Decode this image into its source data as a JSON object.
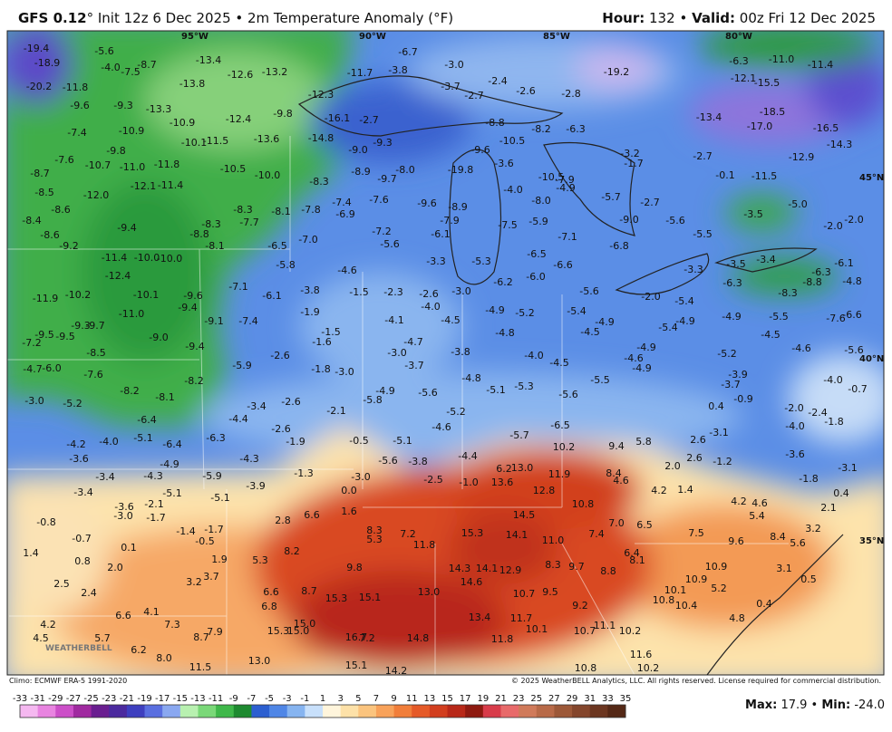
{
  "header": {
    "model": "GFS 0.12",
    "title": "° Init 12z 6 Dec 2025 • 2m Temperature Anomaly (°F)",
    "hour_label": "Hour:",
    "hour": "132",
    "separator": "•",
    "valid_label": "Valid:",
    "valid": "00z Fri 12 Dec 2025"
  },
  "map": {
    "grid_labels": [
      "95°W",
      "90°W",
      "85°W",
      "80°W",
      "45°N",
      "40°N",
      "35°N"
    ],
    "logo": "WEATHERBELL",
    "values": [
      "-19.4",
      "-18.9",
      "-20.2",
      "-5.6",
      "-4.0",
      "-7.5",
      "-8.7",
      "-13.4",
      "-12.6",
      "-13.2",
      "-13.8",
      "-11.8",
      "-9.6",
      "-9.3",
      "-13.3",
      "-10.9",
      "-12.4",
      "-10.9",
      "-7.4",
      "-11.5",
      "-10.1",
      "-13.6",
      "-14.8",
      "-9.8",
      "-7.6",
      "-10.7",
      "-11.0",
      "-11.8",
      "-10.5",
      "-10.0",
      "-8.7",
      "-8.5",
      "-12.0",
      "-12.1",
      "-11.4",
      "-8.6",
      "-8.4",
      "-8.6",
      "-9.2",
      "-9.4",
      "-8.3",
      "-8.8",
      "-8.1",
      "-8.3",
      "-8.1",
      "-7.7",
      "-7.8",
      "-6.5",
      "-7.0",
      "-5.8",
      "-11.4",
      "-10.0",
      "-10.0",
      "-12.4",
      "-11.9",
      "-10.2",
      "-10.1",
      "-9.6",
      "-9.4",
      "-11.0",
      "-9.3",
      "-9.7",
      "-9.5",
      "-9.5",
      "-7.2",
      "-9.0",
      "-9.1",
      "-7.4",
      "-9.4",
      "-8.5",
      "-4.7",
      "-6.0",
      "-7.6",
      "-8.2",
      "-5.9",
      "-2.6",
      "-3.0",
      "-5.2",
      "-8.2",
      "-8.1",
      "-6.4",
      "-3.4",
      "-2.6",
      "-4.4",
      "-4.2",
      "-4.0",
      "-5.1",
      "-6.4",
      "-6.3",
      "-2.6",
      "-1.9",
      "-3.6",
      "-4.9",
      "-4.3",
      "-3.4",
      "-4.3",
      "-5.9",
      "-3.9",
      "-3.4",
      "-5.1",
      "-5.1",
      "-3.6",
      "-2.1",
      "-3.0",
      "-1.7",
      "-0.8",
      "-0.7",
      "-1.4",
      "-1.7",
      "-0.5",
      "0.1",
      "1.4",
      "0.8",
      "2.0",
      "1.9",
      "5.3",
      "8.2",
      "2.8",
      "6.6",
      "1.6",
      "0.0",
      "-1.3",
      "-3.0",
      "3.7",
      "3.2",
      "2.5",
      "2.4",
      "6.6",
      "8.7",
      "6.8",
      "15.3",
      "15.1",
      "13.0",
      "10.7",
      "9.5",
      "9.2",
      "4.2",
      "4.5",
      "6.6",
      "4.1",
      "7.3",
      "5.7",
      "6.2",
      "8.0",
      "11.5",
      "7.9",
      "8.7",
      "15.0",
      "15.3",
      "15.0",
      "16.7",
      "7.2",
      "13.0",
      "14.8",
      "11.8",
      "13.4",
      "11.7",
      "10.1",
      "10.7",
      "11.1",
      "10.2",
      "15.1",
      "14.2",
      "10.8",
      "11.6",
      "10.2",
      "10.8",
      "10.4",
      "10.1",
      "10.9",
      "5.2",
      "4.8",
      "10.9",
      "9.6",
      "8.4",
      "5.6",
      "3.2",
      "3.1",
      "0.5",
      "0.4",
      "6.4",
      "8.1",
      "8.8",
      "9.7",
      "8.3",
      "11.0",
      "7.4",
      "7.0",
      "6.5",
      "7.5",
      "10.8",
      "14.5",
      "12.8",
      "14.1",
      "15.3",
      "11.8",
      "7.2",
      "8.3",
      "5.3",
      "9.8",
      "14.3",
      "14.1",
      "12.9",
      "14.6",
      "13.6",
      "6.2",
      "13.0",
      "11.9",
      "10.2",
      "9.4",
      "8.4",
      "4.6",
      "5.8",
      "4.2",
      "1.4",
      "4.2",
      "4.6",
      "5.4",
      "2.1",
      "0.4",
      "-1.8",
      "-3.1",
      "-3.6",
      "2.0",
      "2.6",
      "2.6",
      "-1.2",
      "-3.1",
      "0.4",
      "-0.9",
      "-3.7",
      "-2.0",
      "-2.4",
      "-4.0",
      "-1.8",
      "-4.0",
      "-0.7",
      "-11.7",
      "-3.8",
      "-6.7",
      "-3.0",
      "-2.4",
      "-2.7",
      "-2.6",
      "-3.7",
      "-2.8",
      "-19.2",
      "-6.3",
      "-11.0",
      "-11.4",
      "-12.1",
      "-15.5",
      "-13.4",
      "-18.5",
      "-17.0",
      "-16.5",
      "-14.3",
      "-12.9",
      "-2.7",
      "-0.1",
      "-11.5",
      "-1.7",
      "-3.2",
      "-12.3",
      "-9.8",
      "-16.1",
      "-2.7",
      "-9.0",
      "-9.3",
      "-8.9",
      "-9.7",
      "-8.0",
      "-8.3",
      "-7.4",
      "-6.9",
      "-7.6",
      "-9.6",
      "-7.2",
      "-5.6",
      "-7.9",
      "-8.9",
      "-6.1",
      "-19.8",
      "-9.6",
      "-10.5",
      "-8.8",
      "-8.2",
      "-6.3",
      "-3.6",
      "-4.0",
      "-10.5",
      "-7.9",
      "-4.9",
      "-8.0",
      "-5.7",
      "-2.7",
      "-7.5",
      "-5.9",
      "-7.1",
      "-6.5",
      "-6.6",
      "-6.8",
      "-9.0",
      "-5.6",
      "-5.5",
      "-3.5",
      "-5.0",
      "-2.0",
      "-2.0",
      "-3.3",
      "-3.5",
      "-3.4",
      "-3.3",
      "-5.3",
      "-6.0",
      "-6.2",
      "-3.0",
      "-4.6",
      "-1.5",
      "-2.3",
      "-2.6",
      "-4.0",
      "-3.8",
      "-6.1",
      "-7.1",
      "-1.9",
      "-1.5",
      "-4.1",
      "-4.5",
      "-4.9",
      "-5.2",
      "-5.4",
      "-4.9",
      "-5.6",
      "-2.0",
      "-5.4",
      "-4.9",
      "-5.5",
      "-7.6",
      "-6.6",
      "-4.5",
      "-4.6",
      "-5.6",
      "-4.9",
      "-5.4",
      "-4.5",
      "-4.8",
      "-4.7",
      "-3.0",
      "-3.7",
      "-1.6",
      "-1.8",
      "-3.0",
      "-3.8",
      "-4.0",
      "-4.9",
      "-4.6",
      "-4.9",
      "-4.5",
      "-5.5",
      "-5.2",
      "-3.9",
      "-4.8",
      "-5.1",
      "-5.3",
      "-5.6",
      "-5.8",
      "-4.9",
      "-5.6",
      "-2.1",
      "-6.5",
      "-5.2",
      "-4.6",
      "-5.7",
      "-5.1",
      "-0.5",
      "-4.4",
      "-5.6",
      "-3.8",
      "-2.5",
      "-1.0",
      "-8.3",
      "-8.8",
      "-6.3",
      "-6.3",
      "-4.8",
      "-6.1"
    ]
  },
  "footer": {
    "climo": "Climo: ECMWF ERA-5 1991-2020",
    "copyright": "© 2025 WeatherBELL Analytics, LLC. All rights reserved. License required for commercial distribution.",
    "max_label": "Max:",
    "max": "17.9",
    "separator": "•",
    "min_label": "Min:",
    "min": "-24.0"
  },
  "colorbar": {
    "labels": [
      -33,
      -31,
      -29,
      -27,
      -25,
      -23,
      -21,
      -19,
      -17,
      -15,
      -13,
      -11,
      -9,
      -7,
      -5,
      -3,
      -1,
      1,
      3,
      5,
      7,
      9,
      11,
      13,
      15,
      17,
      19,
      21,
      23,
      25,
      27,
      29,
      31,
      33,
      35
    ],
    "colors": [
      "#f5b8f0",
      "#e884e0",
      "#cc4fc8",
      "#a02aa0",
      "#6a1e90",
      "#4b2a9e",
      "#3e3fbf",
      "#5a6fe0",
      "#8aa8f0",
      "#b8f0b0",
      "#7ad878",
      "#3fb84a",
      "#1e8a30",
      "#2c5fd0",
      "#4f86e6",
      "#86b4f0",
      "#c8e0fb",
      "#fff5dc",
      "#fde1a8",
      "#fbc47e",
      "#f8a25a",
      "#f17e3a",
      "#e55a28",
      "#d23e1e",
      "#b82818",
      "#8e1a10",
      "#d83c4a",
      "#e86a6a",
      "#d07a5a",
      "#b86a48",
      "#9c5838",
      "#84462c",
      "#6c3620",
      "#542816"
    ]
  }
}
